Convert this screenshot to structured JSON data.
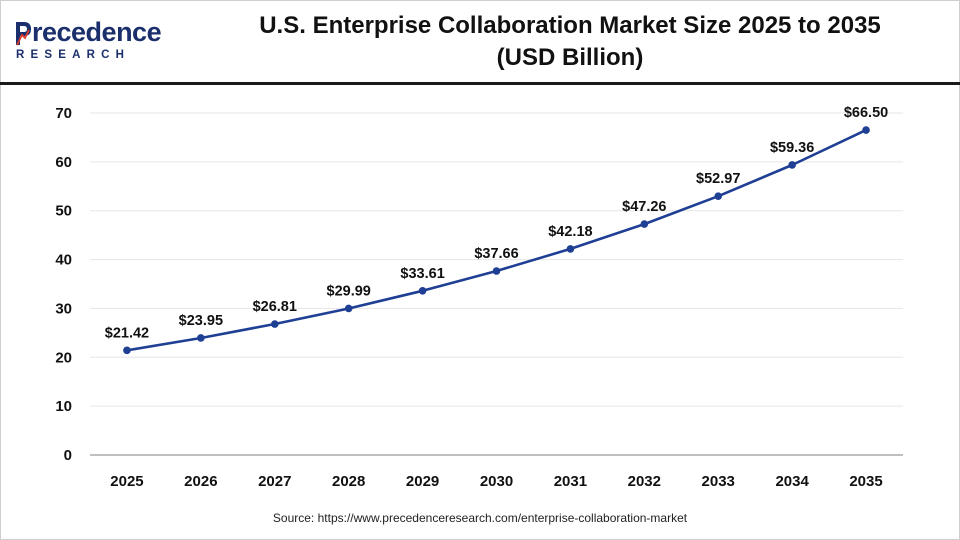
{
  "header": {
    "logo_main": "recedence",
    "logo_sub": "RESEARCH",
    "title_line1": "U.S. Enterprise Collaboration Market Size 2025 to 2035",
    "title_line2": "(USD Billion)"
  },
  "colors": {
    "brand": "#1a2f6b",
    "line": "#1f3f94",
    "grid": "#e6e6e6",
    "text": "#111111"
  },
  "chart_data": {
    "type": "line",
    "title": "U.S. Enterprise Collaboration Market Size 2025 to 2035 (USD Billion)",
    "categories": [
      "2025",
      "2026",
      "2027",
      "2028",
      "2029",
      "2030",
      "2031",
      "2032",
      "2033",
      "2034",
      "2035"
    ],
    "values": [
      21.42,
      23.95,
      26.81,
      29.99,
      33.61,
      37.66,
      42.18,
      47.26,
      52.97,
      59.36,
      66.5
    ],
    "data_labels": [
      "$21.42",
      "$23.95",
      "$26.81",
      "$29.99",
      "$33.61",
      "$37.66",
      "$42.18",
      "$47.26",
      "$52.97",
      "$59.36",
      "$66.50"
    ],
    "y_ticks": [
      "0",
      "10",
      "20",
      "30",
      "40",
      "50",
      "60",
      "70"
    ],
    "ylim": [
      0,
      70
    ],
    "grid": "horizontal",
    "legend": "none"
  },
  "footer": {
    "source": "Source: https://www.precedenceresearch.com/enterprise-collaboration-market"
  }
}
